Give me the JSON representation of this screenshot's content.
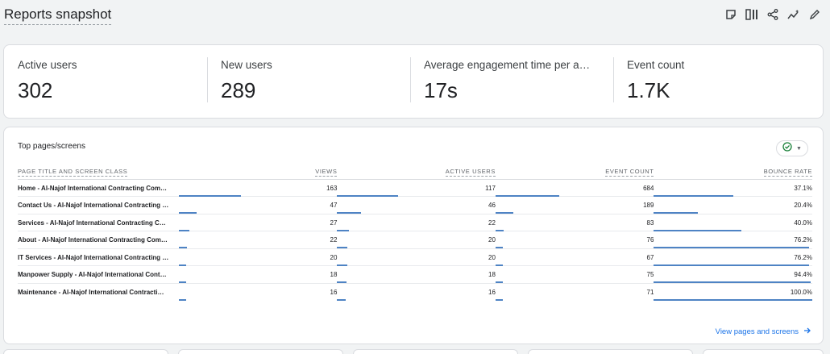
{
  "header": {
    "title": "Reports snapshot",
    "icons": [
      "annotation-icon",
      "compare-icon",
      "share-icon",
      "insights-icon",
      "edit-icon"
    ]
  },
  "kpis": [
    {
      "label": "Active users",
      "value": "302"
    },
    {
      "label": "New users",
      "value": "289"
    },
    {
      "label": "Average engagement time per active user",
      "value": "17s"
    },
    {
      "label": "Event count",
      "value": "1.7K"
    }
  ],
  "table": {
    "title": "Top pages/screens",
    "filter_icon": "check-circle-icon",
    "columns": [
      "PAGE TITLE AND SCREEN CLASS",
      "VIEWS",
      "ACTIVE USERS",
      "EVENT COUNT",
      "BOUNCE RATE"
    ],
    "rows": [
      {
        "name": "Home - Al-Najof International Contracting Com…",
        "views": "163",
        "active_users": "117",
        "event_count": "684",
        "bounce_rate": "37.1%",
        "bars": [
          0.393,
          0.384,
          0.4,
          0.5
        ]
      },
      {
        "name": "Contact Us - Al-Najof International Contracting …",
        "views": "47",
        "active_users": "46",
        "event_count": "189",
        "bounce_rate": "20.4%",
        "bars": [
          0.113,
          0.151,
          0.11,
          0.28
        ]
      },
      {
        "name": "Services - Al-Najof International Contracting C…",
        "views": "27",
        "active_users": "22",
        "event_count": "83",
        "bounce_rate": "40.0%",
        "bars": [
          0.065,
          0.072,
          0.049,
          0.55
        ]
      },
      {
        "name": "About - Al-Najof International Contracting Com…",
        "views": "22",
        "active_users": "20",
        "event_count": "76",
        "bounce_rate": "76.2%",
        "bars": [
          0.053,
          0.066,
          0.044,
          0.98
        ]
      },
      {
        "name": "IT Services - Al-Najof International Contracting …",
        "views": "20",
        "active_users": "20",
        "event_count": "67",
        "bounce_rate": "76.2%",
        "bars": [
          0.048,
          0.066,
          0.039,
          0.98
        ]
      },
      {
        "name": "Manpower Supply - Al-Najof International Cont…",
        "views": "18",
        "active_users": "18",
        "event_count": "75",
        "bounce_rate": "94.4%",
        "bars": [
          0.043,
          0.059,
          0.044,
          0.99
        ]
      },
      {
        "name": "Maintenance - Al-Najof International Contracti…",
        "views": "16",
        "active_users": "16",
        "event_count": "71",
        "bounce_rate": "100.0%",
        "bars": [
          0.039,
          0.053,
          0.041,
          1.0
        ]
      }
    ],
    "footer_link": "View pages and screens"
  },
  "colors": {
    "accent": "#1a73e8",
    "bar": "#4e83c4",
    "ok": "#188038"
  }
}
